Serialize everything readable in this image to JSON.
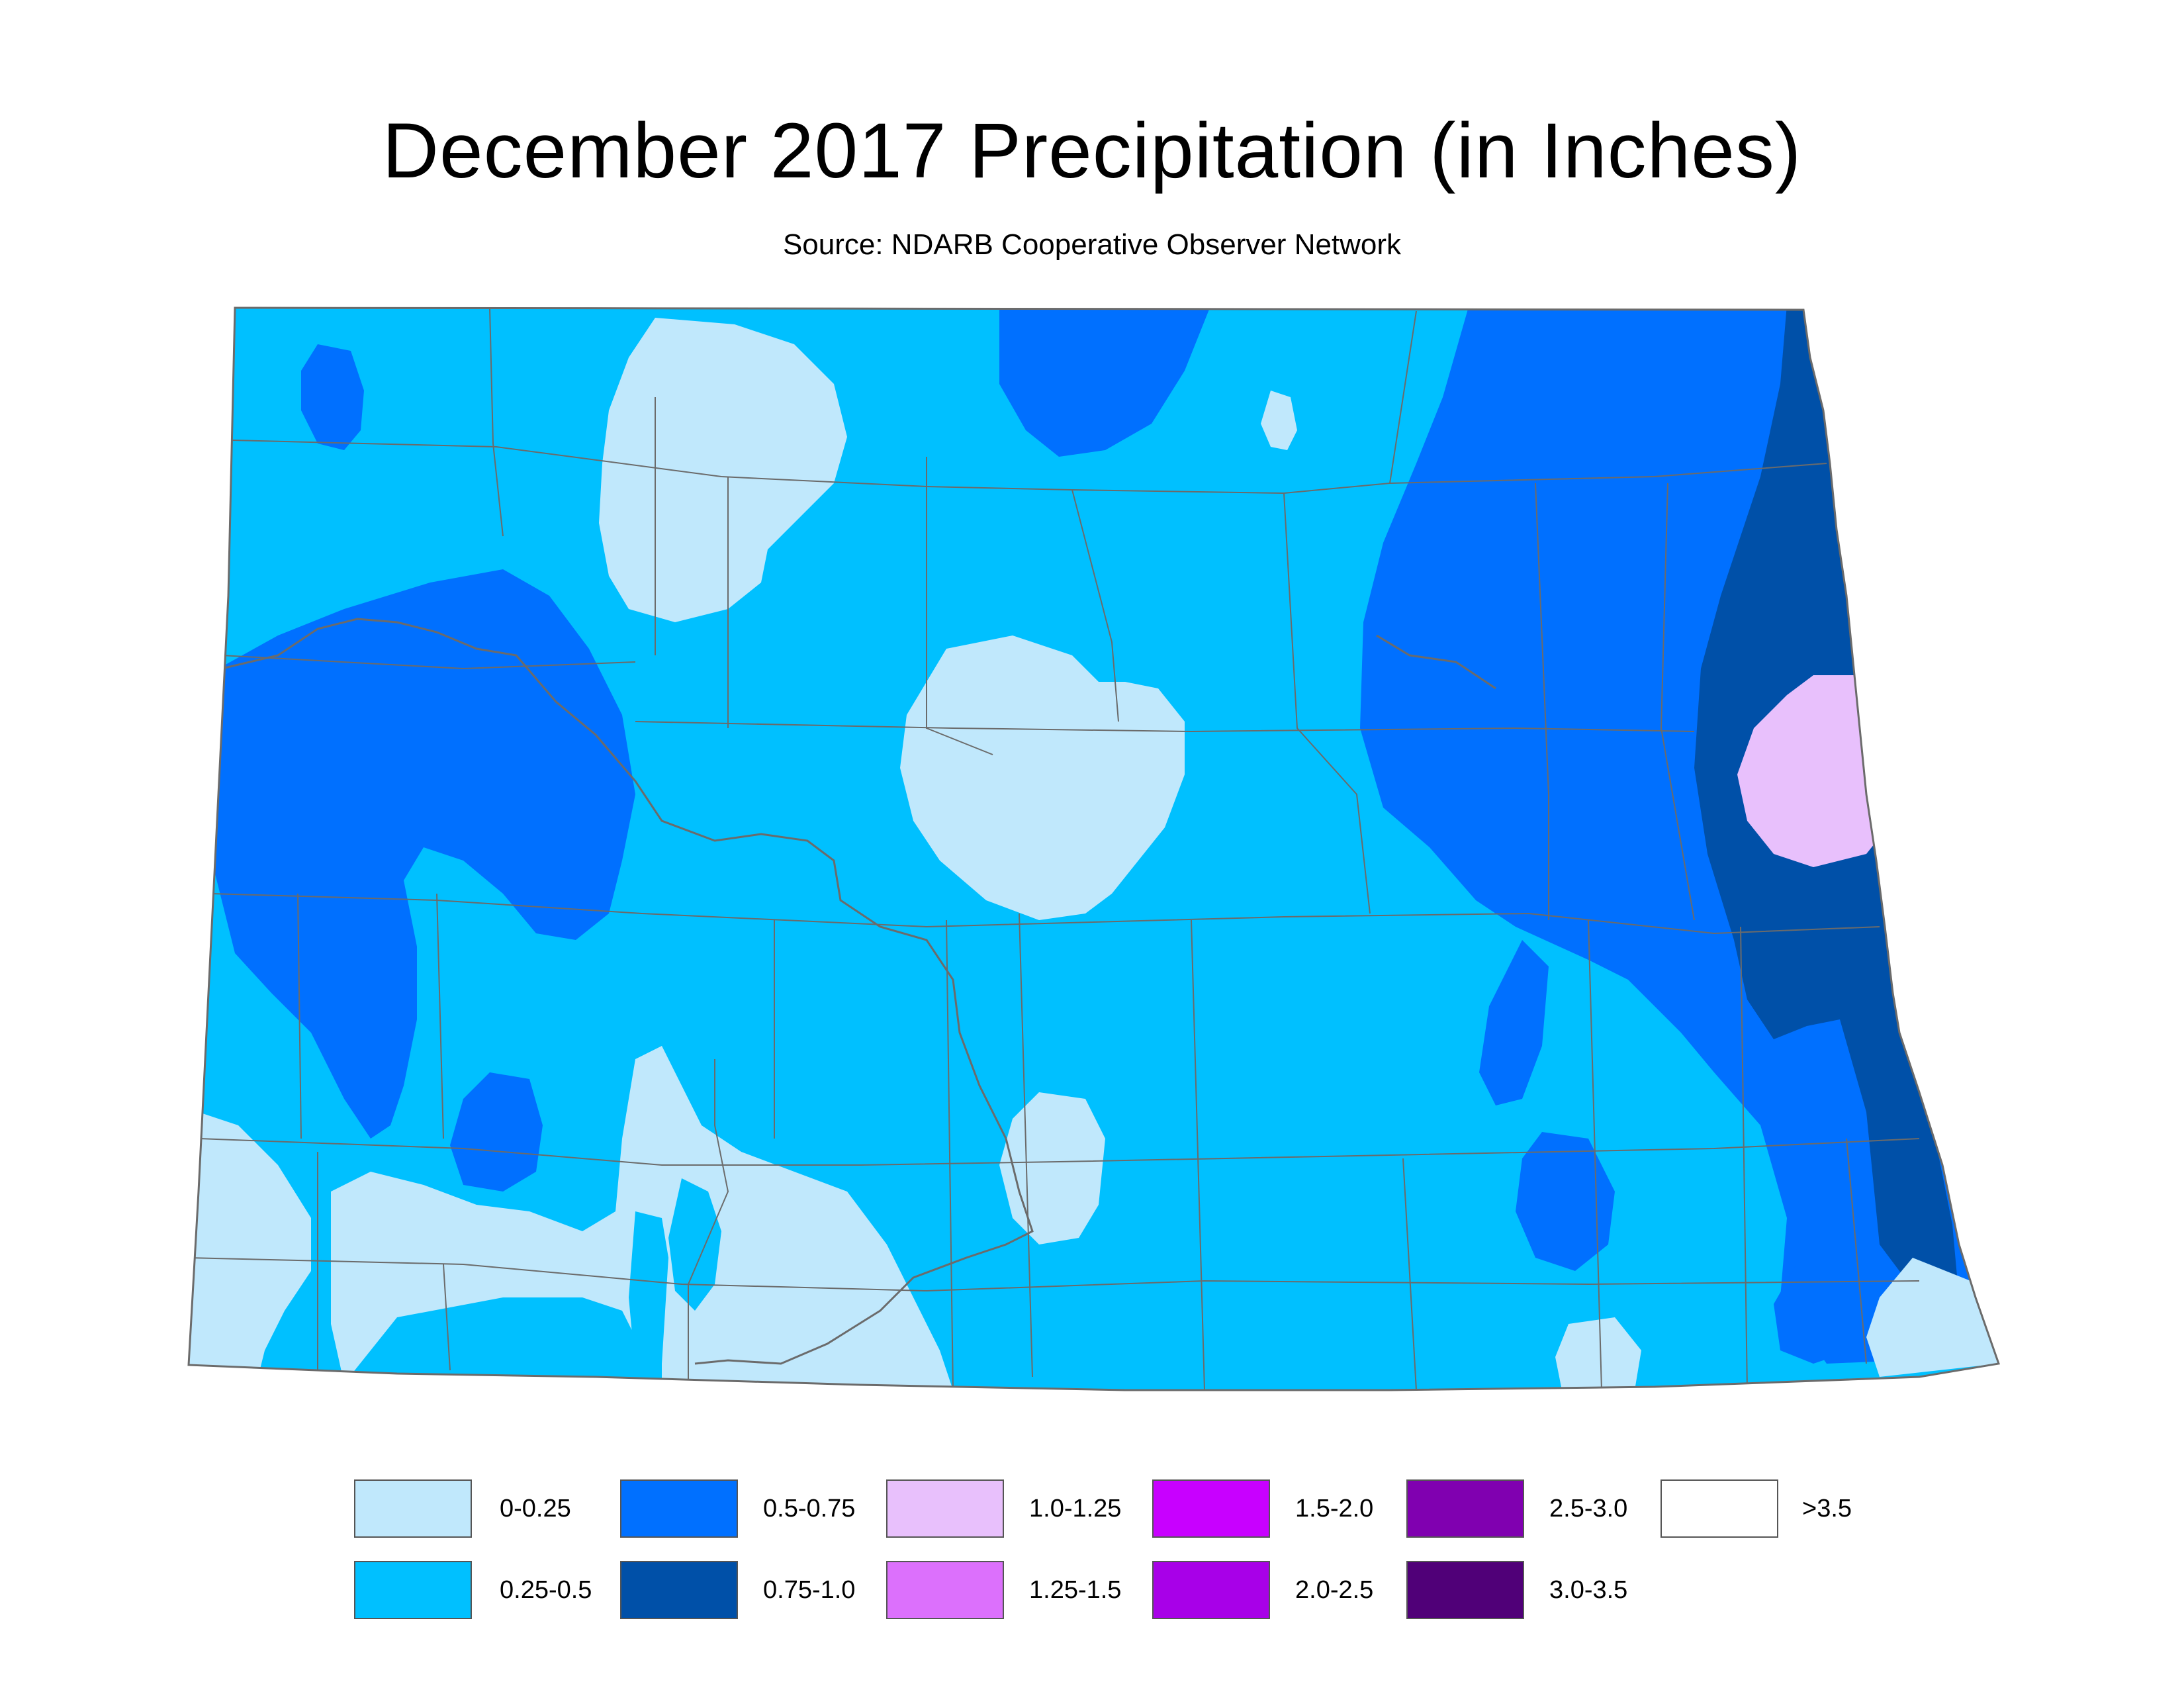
{
  "title": "December 2017 Precipitation (in Inches)",
  "subtitle": "Source: NDARB Cooperative Observer Network",
  "colors": {
    "c0": "#c0e8fc",
    "c1": "#00c0ff",
    "c2": "#0070ff",
    "c3": "#0050a8",
    "c4": "#e8c0fc",
    "border": "#6b6b6b"
  },
  "legend": [
    {
      "label": "0-0.25",
      "color": "#c0e8fc"
    },
    {
      "label": "0.25-0.5",
      "color": "#00c0ff"
    },
    {
      "label": "0.5-0.75",
      "color": "#0070ff"
    },
    {
      "label": "0.75-1.0",
      "color": "#0050a8"
    },
    {
      "label": "1.0-1.25",
      "color": "#e8c0fc"
    },
    {
      "label": "1.25-1.5",
      "color": "#dc70fc"
    },
    {
      "label": "1.5-2.0",
      "color": "#c800ff"
    },
    {
      "label": "2.0-2.5",
      "color": "#a800e8"
    },
    {
      "label": "2.5-3.0",
      "color": "#8000b0"
    },
    {
      "label": "3.0-3.5",
      "color": "#500078"
    },
    {
      "label": ">3.5",
      "color": "#ffffff"
    }
  ]
}
